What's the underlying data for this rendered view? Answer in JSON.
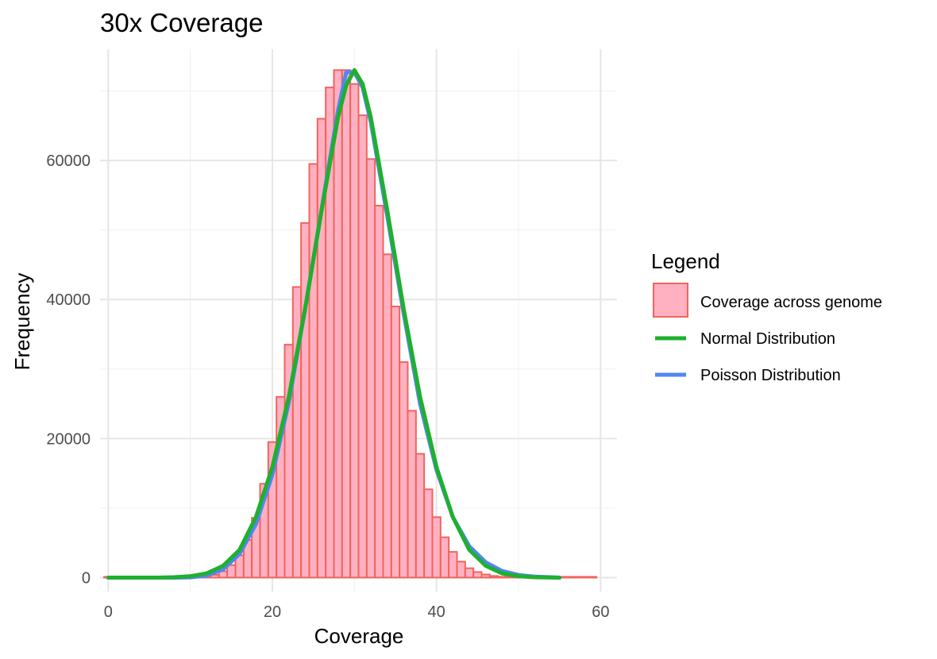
{
  "chart_data": {
    "type": "bar",
    "title": "30x Coverage",
    "xlabel": "Coverage",
    "ylabel": "Frequency",
    "xlim": [
      -1,
      62
    ],
    "ylim": [
      -2000,
      76000
    ],
    "x_ticks": [
      0,
      20,
      40,
      60
    ],
    "y_ticks": [
      0,
      20000,
      40000,
      60000
    ],
    "grid": true,
    "legend_position": "right",
    "legend": {
      "title": "Legend",
      "items": [
        {
          "label": "Coverage across genome",
          "kind": "fill",
          "fill": "#ffb1c1",
          "stroke": "#f0645d"
        },
        {
          "label": "Normal Distribution",
          "kind": "line",
          "color": "#1fb02e"
        },
        {
          "label": "Poisson Distribution",
          "kind": "line",
          "color": "#5286f5"
        }
      ]
    },
    "histogram": {
      "name": "Coverage across genome",
      "x": [
        0,
        1,
        2,
        3,
        4,
        5,
        6,
        7,
        8,
        9,
        10,
        11,
        12,
        13,
        14,
        15,
        16,
        17,
        18,
        19,
        20,
        21,
        22,
        23,
        24,
        25,
        26,
        27,
        28,
        29,
        30,
        31,
        32,
        33,
        34,
        35,
        36,
        37,
        38,
        39,
        40,
        41,
        42,
        43,
        44,
        45,
        46,
        47,
        48,
        49,
        50,
        51,
        52,
        53,
        54,
        55,
        56,
        57,
        58,
        59
      ],
      "values": [
        0,
        0,
        0,
        0,
        0,
        0,
        0,
        0,
        0,
        0,
        0,
        50,
        150,
        400,
        900,
        1800,
        3200,
        5400,
        8600,
        13500,
        19500,
        26000,
        33500,
        41800,
        51000,
        59500,
        66000,
        70500,
        73000,
        73000,
        71000,
        66500,
        60200,
        53500,
        46500,
        39000,
        31000,
        24000,
        17800,
        12700,
        8700,
        5800,
        3700,
        2300,
        1350,
        800,
        450,
        240,
        120,
        60,
        30,
        14,
        6,
        3,
        1,
        0,
        0,
        0,
        0,
        0
      ]
    },
    "series": [
      {
        "name": "Normal Distribution",
        "color": "#1fb02e",
        "x": [
          0,
          2,
          4,
          6,
          8,
          10,
          12,
          14,
          16,
          18,
          20,
          22,
          24,
          26,
          28,
          29,
          30,
          31,
          32,
          34,
          36,
          38,
          40,
          42,
          44,
          46,
          48,
          50,
          52,
          55
        ],
        "values": [
          0,
          0,
          0,
          0,
          50,
          200,
          600,
          1700,
          4000,
          8700,
          15900,
          26000,
          38700,
          52800,
          66200,
          70800,
          73000,
          71000,
          66200,
          52800,
          38700,
          26000,
          15900,
          8700,
          4000,
          1700,
          600,
          200,
          50,
          0
        ]
      },
      {
        "name": "Poisson Distribution",
        "color": "#5286f5",
        "x": [
          0,
          2,
          4,
          6,
          8,
          10,
          12,
          14,
          16,
          18,
          20,
          22,
          24,
          26,
          28,
          29,
          30,
          31,
          32,
          34,
          36,
          38,
          40,
          42,
          44,
          46,
          48,
          50,
          52,
          55
        ],
        "values": [
          0,
          0,
          0,
          0,
          0,
          40,
          300,
          1200,
          3400,
          7700,
          14800,
          25200,
          38700,
          53000,
          67200,
          72700,
          72700,
          70500,
          65500,
          52000,
          38000,
          25000,
          15500,
          8700,
          4500,
          2200,
          950,
          380,
          140,
          0
        ]
      }
    ]
  }
}
